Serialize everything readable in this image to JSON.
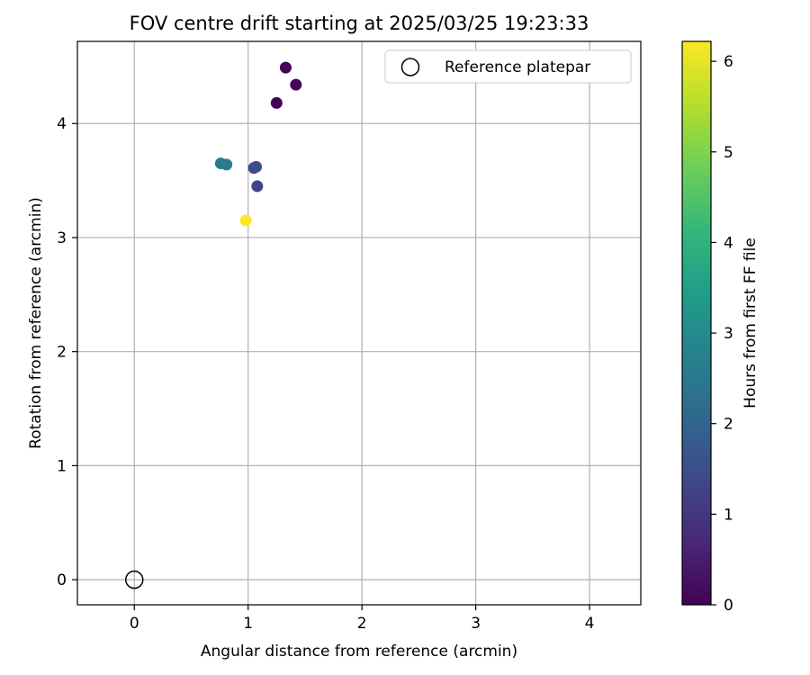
{
  "chart_data": {
    "type": "scatter",
    "title": "FOV centre drift starting at 2025/03/25 19:23:33",
    "xlabel": "Angular distance from reference (arcmin)",
    "ylabel": "Rotation from reference (arcmin)",
    "xlim": [
      -0.5,
      4.45
    ],
    "ylim": [
      -0.22,
      4.72
    ],
    "x_ticks": [
      0,
      1,
      2,
      3,
      4
    ],
    "y_ticks": [
      0,
      1,
      2,
      3,
      4
    ],
    "grid": true,
    "legend": {
      "position": "top-right",
      "entries": [
        "Reference platepar"
      ]
    },
    "reference_point": {
      "x": 0,
      "y": 0
    },
    "colorbar": {
      "label": "Hours from first FF file",
      "min": 0,
      "max": 6.22,
      "ticks": [
        0,
        1,
        2,
        3,
        4,
        5,
        6
      ],
      "colormap": "viridis"
    },
    "points": [
      {
        "x": 1.25,
        "y": 4.18,
        "hours": 0.0
      },
      {
        "x": 1.33,
        "y": 4.49,
        "hours": 0.05
      },
      {
        "x": 1.42,
        "y": 4.34,
        "hours": 0.1
      },
      {
        "x": 1.08,
        "y": 3.45,
        "hours": 1.3
      },
      {
        "x": 1.05,
        "y": 3.61,
        "hours": 1.4
      },
      {
        "x": 1.07,
        "y": 3.62,
        "hours": 1.5
      },
      {
        "x": 0.76,
        "y": 3.65,
        "hours": 2.5
      },
      {
        "x": 0.81,
        "y": 3.64,
        "hours": 2.6
      },
      {
        "x": 0.98,
        "y": 3.15,
        "hours": 6.22
      }
    ]
  },
  "colors": {
    "axis": "#000000",
    "grid": "#b0b0b0",
    "viridis": [
      "#440154",
      "#482878",
      "#3e4989",
      "#31688e",
      "#26828e",
      "#1f9e89",
      "#35b779",
      "#6ece58",
      "#b5de2b",
      "#fde725"
    ]
  }
}
